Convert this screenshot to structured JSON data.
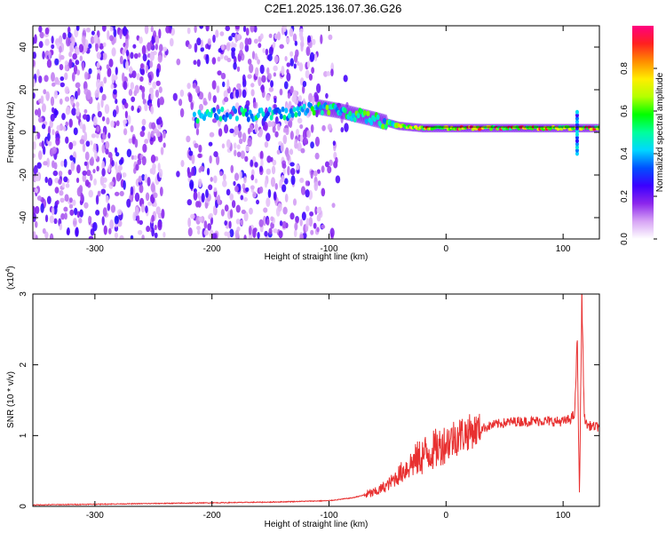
{
  "chart_data": [
    {
      "type": "heatmap",
      "title": "C2E1.2025.136.07.36.G26",
      "xlabel": "Height of straight line (km)",
      "ylabel": "Frequency (Hz)",
      "xlim": [
        -353,
        131
      ],
      "ylim": [
        -50,
        50
      ],
      "xticks": [
        "-300",
        "-200",
        "-100",
        "0",
        "100"
      ],
      "yticks": [
        "-40",
        "-20",
        "0",
        "20",
        "40"
      ],
      "grid": false,
      "colorbar": {
        "label": "Normalized spectral amplitude",
        "range": [
          0,
          1
        ],
        "ticks": [
          "0.0",
          "0.2",
          "0.4",
          "0.6",
          "0.8"
        ],
        "colors": [
          "#ffffff",
          "#d7a4f5",
          "#8c26ec",
          "#3b00ff",
          "#0050ff",
          "#00d7ff",
          "#00ff9b",
          "#00ff00",
          "#b4ff00",
          "#ffee00",
          "#ff8c00",
          "#ff2020",
          "#ff0080"
        ]
      },
      "features": [
        {
          "name": "noise",
          "x_range": [
            -353,
            -80
          ],
          "freq_range": [
            -50,
            50
          ]
        },
        {
          "name": "signal",
          "x": [
            -215,
            -200,
            -180,
            -160,
            -130,
            -110,
            -90,
            -60,
            -40,
            -20,
            0,
            30,
            60,
            90,
            110,
            131
          ],
          "freq": [
            7,
            8,
            9,
            8,
            9,
            12,
            10,
            6,
            3,
            2,
            2,
            2,
            2,
            2,
            2,
            2
          ]
        }
      ]
    },
    {
      "type": "line",
      "title": "",
      "xlabel": "Height of straight line (km)",
      "ylabel": "SNR (10 * v/v)",
      "y_multiplier": "(x10^4)",
      "xlim": [
        -353,
        131
      ],
      "ylim": [
        0,
        3
      ],
      "xticks": [
        "-300",
        "-200",
        "-100",
        "0",
        "100"
      ],
      "yticks": [
        "0",
        "1",
        "2",
        "3"
      ],
      "grid": false,
      "series": [
        {
          "color": "#e83030",
          "x": [
            -353,
            -300,
            -250,
            -200,
            -150,
            -100,
            -80,
            -60,
            -50,
            -40,
            -30,
            -20,
            -10,
            0,
            10,
            20,
            30,
            40,
            50,
            60,
            70,
            80,
            90,
            100,
            105,
            110,
            112,
            114,
            116,
            118,
            120,
            125,
            131
          ],
          "values": [
            0.02,
            0.03,
            0.04,
            0.05,
            0.06,
            0.08,
            0.12,
            0.2,
            0.3,
            0.45,
            0.6,
            0.72,
            0.8,
            0.9,
            1.0,
            1.05,
            1.1,
            1.15,
            1.18,
            1.2,
            1.2,
            1.21,
            1.2,
            1.2,
            1.22,
            1.3,
            2.4,
            0.1,
            3.0,
            1.3,
            1.15,
            1.13,
            1.12
          ]
        }
      ]
    }
  ]
}
